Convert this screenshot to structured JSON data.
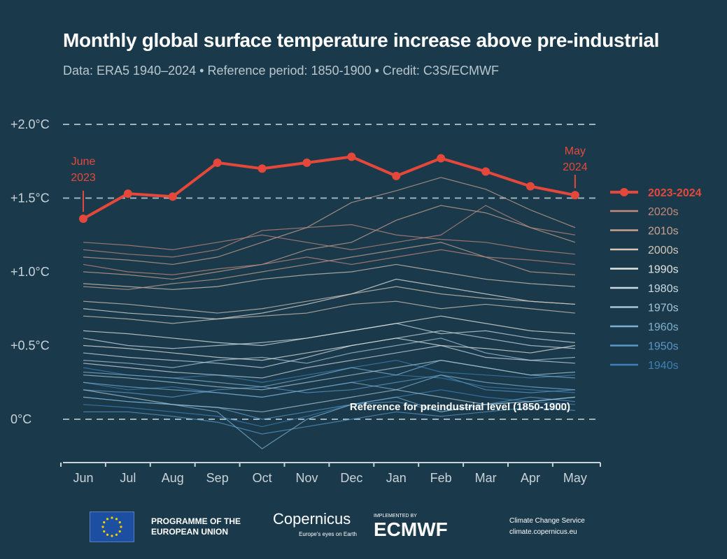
{
  "header": {
    "title": "Monthly global surface temperature increase above pre-industrial",
    "subtitle": "Data: ERA5 1940–2024 • Reference period: 1850-1900 • Credit: C3S/ECMWF"
  },
  "chart_data": {
    "type": "line",
    "title": "Monthly global surface temperature increase above pre-industrial",
    "categories": [
      "Jun",
      "Jul",
      "Aug",
      "Sep",
      "Oct",
      "Nov",
      "Dec",
      "Jan",
      "Feb",
      "Mar",
      "Apr",
      "May"
    ],
    "ylim": [
      -0.3,
      2.0
    ],
    "yticks": [
      {
        "v": 0,
        "label": "0°C"
      },
      {
        "v": 0.5,
        "label": "+0.5°C"
      },
      {
        "v": 1.0,
        "label": "+1.0°C"
      },
      {
        "v": 1.5,
        "label": "+1.5°C"
      },
      {
        "v": 2.0,
        "label": "+2.0°C"
      }
    ],
    "grid": "dashed at 0, 1.5 and 2.0",
    "legend_position": "right",
    "highlight": {
      "name": "2023-2024",
      "color": "#e5483b",
      "values": [
        1.36,
        1.53,
        1.51,
        1.74,
        1.7,
        1.74,
        1.78,
        1.65,
        1.77,
        1.68,
        1.58,
        1.52
      ],
      "start_label": [
        "June",
        "2023"
      ],
      "end_label": [
        "May",
        "2024"
      ]
    },
    "reference_label": "Reference for preindustrial level (1850-1900)",
    "decades": [
      {
        "name": "2020s",
        "color": "#c4887c",
        "series": [
          [
            1.2,
            1.18,
            1.15,
            1.2,
            1.25,
            1.2,
            1.15,
            1.2,
            1.25,
            1.45,
            1.3,
            1.25
          ],
          [
            1.05,
            1.0,
            0.98,
            1.02,
            1.05,
            1.1,
            1.05,
            1.1,
            1.15,
            1.1,
            1.08,
            1.05
          ],
          [
            1.15,
            1.12,
            1.1,
            1.15,
            1.28,
            1.3,
            1.32,
            1.25,
            1.22,
            1.2,
            1.15,
            1.12
          ]
        ]
      },
      {
        "name": "2010s",
        "color": "#c9a392",
        "series": [
          [
            0.9,
            0.88,
            0.92,
            0.95,
            1.0,
            1.05,
            1.1,
            1.15,
            1.2,
            1.1,
            1.0,
            0.98
          ],
          [
            1.0,
            0.98,
            0.95,
            1.0,
            1.05,
            1.15,
            1.2,
            1.35,
            1.45,
            1.4,
            1.3,
            1.2
          ],
          [
            1.1,
            1.08,
            1.05,
            1.1,
            1.2,
            1.3,
            1.47,
            1.55,
            1.64,
            1.56,
            1.42,
            1.3
          ]
        ]
      },
      {
        "name": "2000s",
        "color": "#d5c6b6",
        "series": [
          [
            0.8,
            0.78,
            0.75,
            0.72,
            0.75,
            0.8,
            0.85,
            0.9,
            0.85,
            0.82,
            0.8,
            0.78
          ],
          [
            0.92,
            0.9,
            0.88,
            0.9,
            0.95,
            0.98,
            1.0,
            1.05,
            1.0,
            0.95,
            0.92,
            0.9
          ],
          [
            0.7,
            0.68,
            0.65,
            0.68,
            0.7,
            0.72,
            0.78,
            0.8,
            0.75,
            0.78,
            0.75,
            0.72
          ]
        ]
      },
      {
        "name": "1990s",
        "color": "#e4e4e0",
        "series": [
          [
            0.6,
            0.58,
            0.55,
            0.52,
            0.5,
            0.55,
            0.6,
            0.65,
            0.7,
            0.65,
            0.6,
            0.58
          ],
          [
            0.75,
            0.72,
            0.7,
            0.68,
            0.72,
            0.78,
            0.85,
            0.95,
            0.9,
            0.85,
            0.8,
            0.78
          ],
          [
            0.5,
            0.48,
            0.45,
            0.42,
            0.4,
            0.45,
            0.5,
            0.55,
            0.5,
            0.48,
            0.45,
            0.5
          ]
        ]
      },
      {
        "name": "1980s",
        "color": "#cbdae2",
        "series": [
          [
            0.45,
            0.42,
            0.4,
            0.38,
            0.35,
            0.42,
            0.5,
            0.55,
            0.6,
            0.55,
            0.5,
            0.48
          ],
          [
            0.55,
            0.5,
            0.48,
            0.5,
            0.52,
            0.55,
            0.6,
            0.65,
            0.58,
            0.6,
            0.55,
            0.52
          ],
          [
            0.38,
            0.35,
            0.32,
            0.3,
            0.28,
            0.35,
            0.4,
            0.45,
            0.5,
            0.42,
            0.4,
            0.38
          ]
        ]
      },
      {
        "name": "1970s",
        "color": "#a7c7d9",
        "series": [
          [
            0.3,
            0.28,
            0.25,
            0.22,
            0.2,
            0.25,
            0.3,
            0.35,
            0.4,
            0.35,
            0.3,
            0.32
          ],
          [
            0.2,
            0.15,
            0.1,
            0.08,
            0.05,
            0.1,
            0.15,
            0.2,
            0.15,
            0.1,
            0.12,
            0.15
          ],
          [
            0.4,
            0.38,
            0.35,
            0.4,
            0.42,
            0.38,
            0.45,
            0.5,
            0.55,
            0.45,
            0.4,
            0.42
          ]
        ]
      },
      {
        "name": "1960s",
        "color": "#7fb0cf",
        "series": [
          [
            0.25,
            0.22,
            0.2,
            0.18,
            0.15,
            0.2,
            0.25,
            0.2,
            0.3,
            0.25,
            0.22,
            0.2
          ],
          [
            0.15,
            0.12,
            0.1,
            0.05,
            -0.2,
            0.0,
            0.1,
            0.15,
            0.05,
            0.1,
            0.12,
            0.15
          ],
          [
            0.32,
            0.3,
            0.28,
            0.25,
            0.22,
            0.28,
            0.35,
            0.3,
            0.4,
            0.35,
            0.3,
            0.28
          ]
        ]
      },
      {
        "name": "1950s",
        "color": "#5b97c4",
        "series": [
          [
            0.15,
            0.12,
            0.1,
            0.08,
            0.0,
            0.05,
            0.1,
            0.12,
            0.05,
            0.1,
            0.15,
            0.12
          ],
          [
            0.2,
            0.18,
            0.15,
            0.2,
            0.22,
            0.18,
            0.2,
            0.25,
            0.3,
            0.2,
            0.18,
            0.2
          ],
          [
            0.05,
            0.05,
            0.02,
            -0.02,
            -0.1,
            -0.05,
            0.0,
            0.05,
            0.02,
            0.05,
            0.08,
            0.06
          ]
        ]
      },
      {
        "name": "1940s",
        "color": "#3f7fb5",
        "series": [
          [
            0.25,
            0.2,
            0.22,
            0.18,
            0.15,
            0.2,
            0.25,
            0.3,
            0.28,
            0.22,
            0.2,
            0.18
          ],
          [
            0.35,
            0.3,
            0.28,
            0.3,
            0.25,
            0.3,
            0.35,
            0.4,
            0.32,
            0.3,
            0.28,
            0.3
          ],
          [
            0.1,
            0.08,
            0.05,
            0.02,
            -0.05,
            0.02,
            0.1,
            0.15,
            0.2,
            0.15,
            0.12,
            0.1
          ]
        ]
      }
    ]
  },
  "footer": {
    "eu": "PROGRAMME OF THE EUROPEAN UNION",
    "copernicus": "Copernicus",
    "copernicus_tagline": "Europe's eyes on Earth",
    "implemented_by": "IMPLEMENTED BY",
    "ecmwf": "ECMWF",
    "ccs": "Climate Change Service",
    "ccs_url": "climate.copernicus.eu"
  }
}
